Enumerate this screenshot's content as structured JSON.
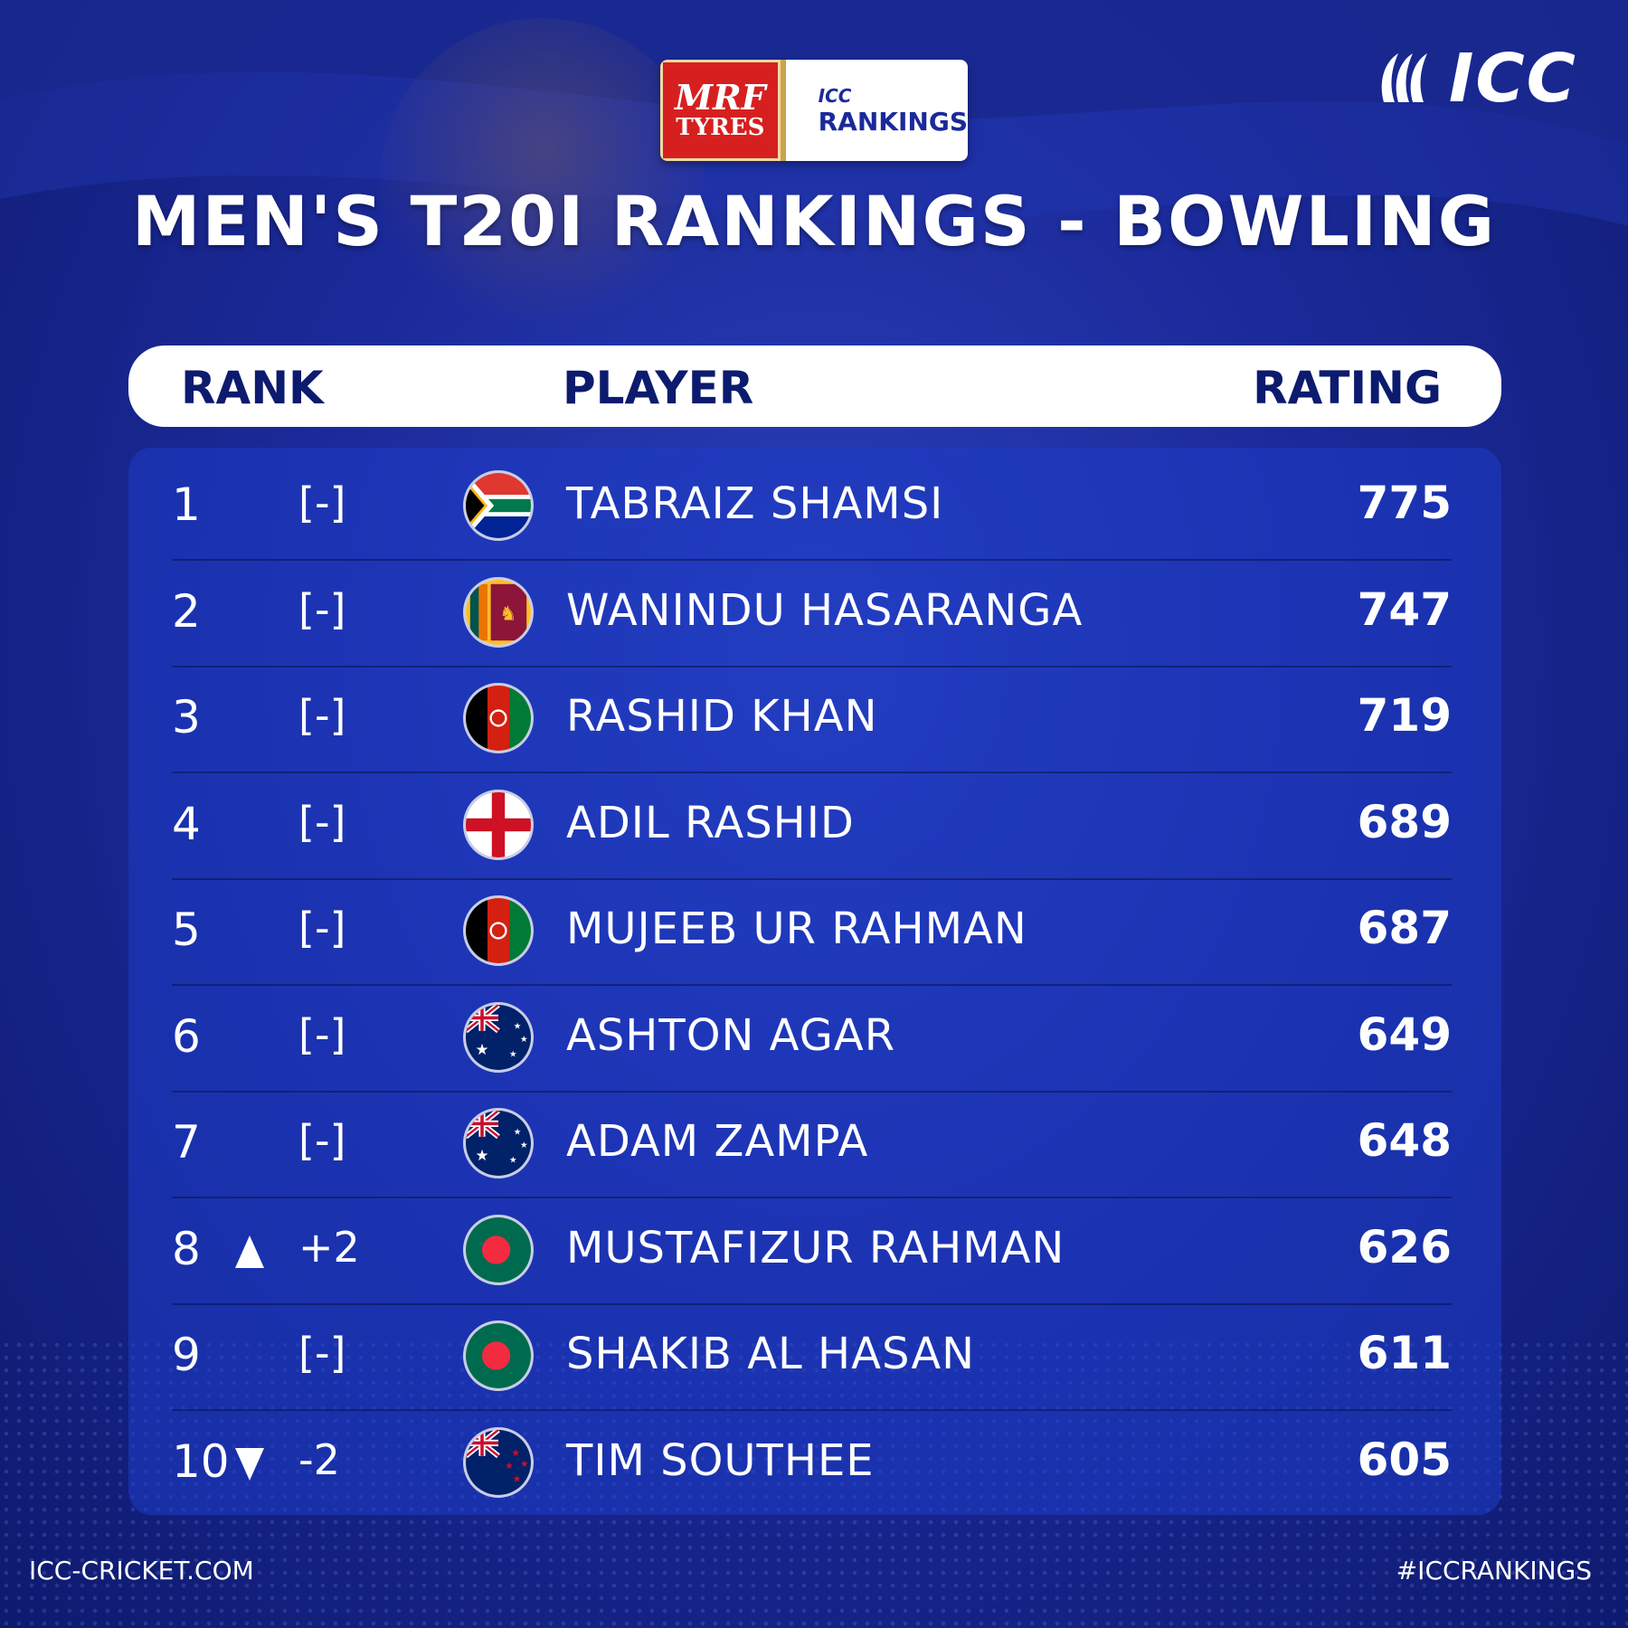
{
  "brand": {
    "icc_logo_text": "ICC",
    "sponsor_line1": "MRF",
    "sponsor_line2": "TYRES",
    "badge_icc": "ICC",
    "badge_rankings": "RANKINGS"
  },
  "title": "MEN'S T20I RANKINGS - BOWLING",
  "header": {
    "rank": "RANK",
    "player": "PLAYER",
    "rating": "RATING"
  },
  "rows": [
    {
      "rank": "1",
      "movement": "[-]",
      "trend": "none",
      "flag": "south-africa-flag-icon",
      "player": "TABRAIZ SHAMSI",
      "rating": "775"
    },
    {
      "rank": "2",
      "movement": "[-]",
      "trend": "none",
      "flag": "sri-lanka-flag-icon",
      "player": "WANINDU HASARANGA",
      "rating": "747"
    },
    {
      "rank": "3",
      "movement": "[-]",
      "trend": "none",
      "flag": "afghanistan-flag-icon",
      "player": "RASHID KHAN",
      "rating": "719"
    },
    {
      "rank": "4",
      "movement": "[-]",
      "trend": "none",
      "flag": "england-flag-icon",
      "player": "ADIL RASHID",
      "rating": "689"
    },
    {
      "rank": "5",
      "movement": "[-]",
      "trend": "none",
      "flag": "afghanistan-flag-icon",
      "player": "MUJEEB UR RAHMAN",
      "rating": "687"
    },
    {
      "rank": "6",
      "movement": "[-]",
      "trend": "none",
      "flag": "australia-flag-icon",
      "player": "ASHTON AGAR",
      "rating": "649"
    },
    {
      "rank": "7",
      "movement": "[-]",
      "trend": "none",
      "flag": "australia-flag-icon",
      "player": "ADAM ZAMPA",
      "rating": "648"
    },
    {
      "rank": "8",
      "movement": "+2",
      "trend": "up",
      "flag": "bangladesh-flag-icon",
      "player": "MUSTAFIZUR RAHMAN",
      "rating": "626"
    },
    {
      "rank": "9",
      "movement": "[-]",
      "trend": "none",
      "flag": "bangladesh-flag-icon",
      "player": "SHAKIB AL HASAN",
      "rating": "611"
    },
    {
      "rank": "10",
      "movement": "-2",
      "trend": "down",
      "flag": "new-zealand-flag-icon",
      "player": "TIM SOUTHEE",
      "rating": "605"
    }
  ],
  "footer": {
    "website": "ICC-CRICKET.COM",
    "hashtag": "#ICCRANKINGS"
  },
  "colors": {
    "background": "#1b2a9a",
    "header_text": "#0c1b6e",
    "sponsor_red": "#d62020"
  }
}
